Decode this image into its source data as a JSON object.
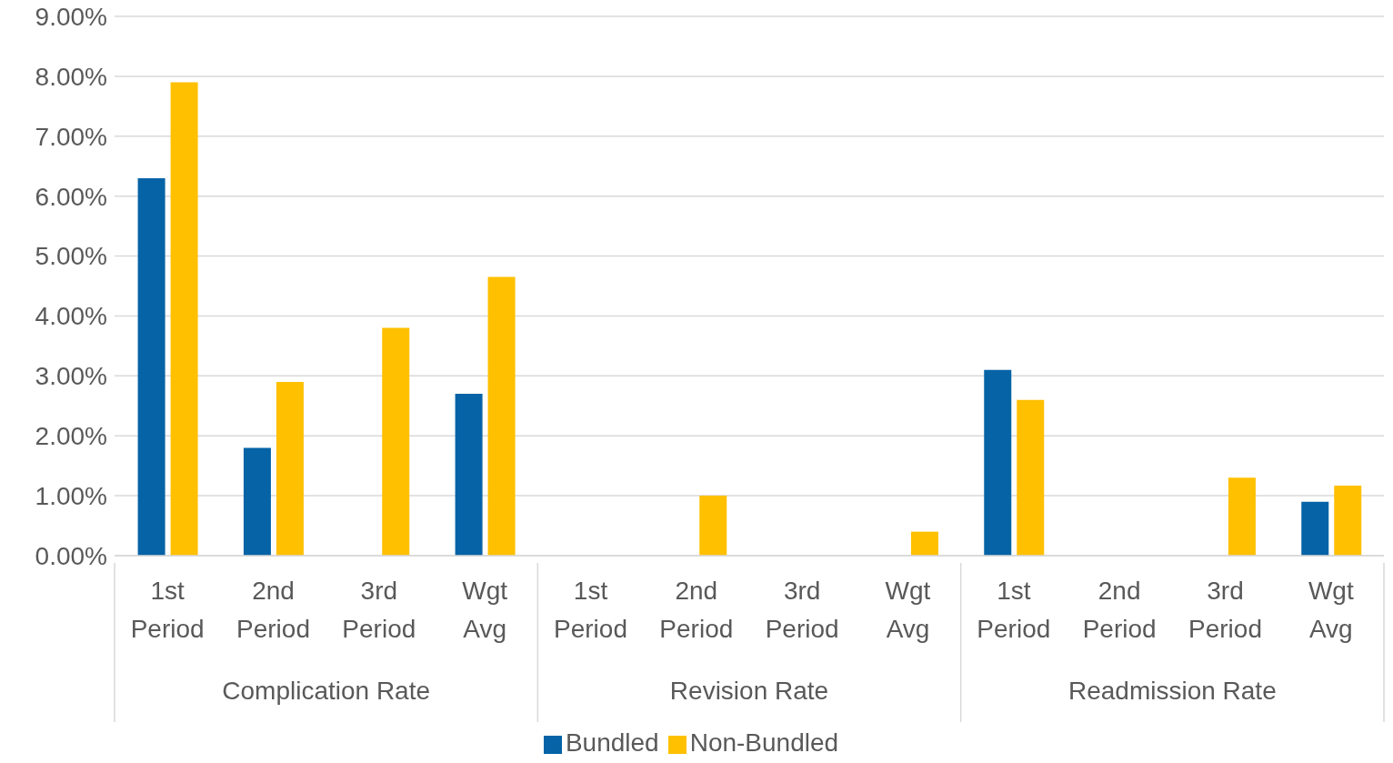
{
  "chart_data": {
    "type": "bar",
    "categories": [
      "1st Period",
      "2nd Period",
      "3rd Period",
      "Wgt Avg",
      "1st Period",
      "2nd Period",
      "3rd Period",
      "Wgt Avg",
      "1st Period",
      "2nd Period",
      "3rd Period",
      "Wgt Avg"
    ],
    "annotations": [
      "Complication Rate",
      "Revision Rate",
      "Readmission Rate"
    ],
    "series": [
      {
        "name": "Bundled",
        "color": "#0563a6",
        "values": [
          6.3,
          1.8,
          0,
          2.7,
          0,
          0,
          0,
          0,
          3.1,
          0,
          0,
          0.9
        ]
      },
      {
        "name": "Non-Bundled",
        "color": "#ffc000",
        "values": [
          7.9,
          2.9,
          3.8,
          4.65,
          0,
          1.0,
          0,
          0.4,
          2.6,
          0,
          1.3,
          1.17
        ]
      }
    ],
    "ylim": [
      0,
      9
    ],
    "yticks": [
      {
        "value": 0,
        "label": "0.00%"
      },
      {
        "value": 1,
        "label": "1.00%"
      },
      {
        "value": 2,
        "label": "2.00%"
      },
      {
        "value": 3,
        "label": "3.00%"
      },
      {
        "value": 4,
        "label": "4.00%"
      },
      {
        "value": 5,
        "label": "5.00%"
      },
      {
        "value": 6,
        "label": "6.00%"
      },
      {
        "value": 7,
        "label": "7.00%"
      },
      {
        "value": 8,
        "label": "8.00%"
      },
      {
        "value": 9,
        "label": "9.00%"
      }
    ],
    "grid": "y",
    "legend": "bottom"
  }
}
